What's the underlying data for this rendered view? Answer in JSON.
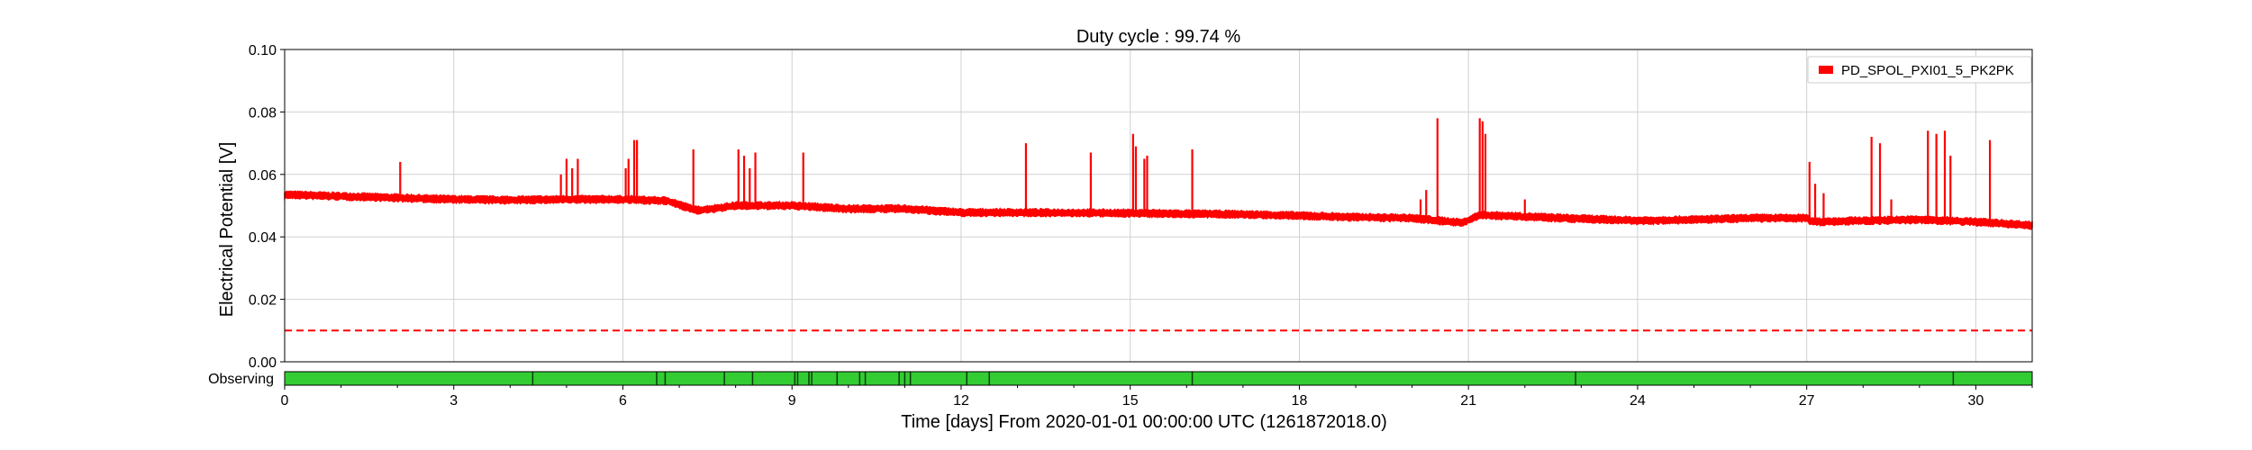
{
  "chart_data": {
    "type": "line",
    "title": "Duty cycle : 99.74 %",
    "xlabel": "Time [days] From 2020-01-01 00:00:00 UTC (1261872018.0)",
    "ylabel": "Electrical Potential [V]",
    "xlim": [
      0,
      31
    ],
    "ylim": [
      0,
      0.1
    ],
    "x_ticks": [
      0,
      3,
      6,
      9,
      12,
      15,
      18,
      21,
      24,
      27,
      30
    ],
    "y_ticks": [
      "0.00",
      "0.02",
      "0.04",
      "0.06",
      "0.08",
      "0.10"
    ],
    "grid": true,
    "legend_position": "top-right",
    "series": [
      {
        "name": "PD_SPOL_PXI01_5_PK2PK",
        "color": "#ff0000",
        "baseline": [
          [
            0.0,
            0.0535
          ],
          [
            1.0,
            0.053
          ],
          [
            2.0,
            0.0525
          ],
          [
            3.0,
            0.052
          ],
          [
            4.0,
            0.0518
          ],
          [
            5.0,
            0.052
          ],
          [
            6.0,
            0.052
          ],
          [
            6.8,
            0.0515
          ],
          [
            7.3,
            0.0485
          ],
          [
            7.6,
            0.049
          ],
          [
            8.0,
            0.05
          ],
          [
            9.0,
            0.05
          ],
          [
            10.0,
            0.049
          ],
          [
            11.0,
            0.049
          ],
          [
            12.0,
            0.0478
          ],
          [
            13.0,
            0.0478
          ],
          [
            14.0,
            0.0477
          ],
          [
            15.0,
            0.0476
          ],
          [
            16.0,
            0.0474
          ],
          [
            17.0,
            0.0472
          ],
          [
            18.0,
            0.0468
          ],
          [
            19.0,
            0.0463
          ],
          [
            20.0,
            0.046
          ],
          [
            20.9,
            0.0445
          ],
          [
            21.2,
            0.047
          ],
          [
            22.0,
            0.0465
          ],
          [
            23.0,
            0.0458
          ],
          [
            24.0,
            0.0452
          ],
          [
            25.0,
            0.0455
          ],
          [
            26.0,
            0.046
          ],
          [
            27.0,
            0.046
          ],
          [
            27.1,
            0.0448
          ],
          [
            28.0,
            0.0452
          ],
          [
            29.0,
            0.0455
          ],
          [
            30.0,
            0.0448
          ],
          [
            31.0,
            0.0437
          ]
        ],
        "spikes": [
          [
            2.05,
            0.064
          ],
          [
            4.9,
            0.06
          ],
          [
            5.0,
            0.065
          ],
          [
            5.1,
            0.062
          ],
          [
            5.2,
            0.065
          ],
          [
            6.05,
            0.062
          ],
          [
            6.1,
            0.065
          ],
          [
            6.2,
            0.071
          ],
          [
            6.25,
            0.071
          ],
          [
            7.25,
            0.068
          ],
          [
            8.05,
            0.068
          ],
          [
            8.15,
            0.066
          ],
          [
            8.25,
            0.062
          ],
          [
            8.35,
            0.067
          ],
          [
            9.2,
            0.067
          ],
          [
            13.15,
            0.07
          ],
          [
            14.3,
            0.067
          ],
          [
            15.05,
            0.073
          ],
          [
            15.1,
            0.069
          ],
          [
            15.25,
            0.065
          ],
          [
            15.3,
            0.066
          ],
          [
            16.1,
            0.068
          ],
          [
            20.15,
            0.052
          ],
          [
            20.25,
            0.055
          ],
          [
            20.45,
            0.078
          ],
          [
            21.2,
            0.078
          ],
          [
            21.25,
            0.077
          ],
          [
            21.3,
            0.073
          ],
          [
            22.0,
            0.052
          ],
          [
            27.05,
            0.064
          ],
          [
            27.15,
            0.057
          ],
          [
            27.3,
            0.054
          ],
          [
            28.15,
            0.072
          ],
          [
            28.3,
            0.07
          ],
          [
            28.5,
            0.052
          ],
          [
            29.15,
            0.074
          ],
          [
            29.3,
            0.073
          ],
          [
            29.45,
            0.074
          ],
          [
            29.55,
            0.066
          ],
          [
            30.25,
            0.071
          ]
        ]
      }
    ],
    "threshold": {
      "y": 0.01,
      "color": "#ff0000",
      "style": "dashed"
    },
    "segment_bar": {
      "label": "Observing",
      "color": "#33cc33",
      "gap_color": "#0a3d0a",
      "gaps": [
        4.4,
        6.6,
        6.75,
        7.8,
        8.3,
        9.05,
        9.1,
        9.3,
        9.35,
        9.8,
        10.2,
        10.3,
        10.9,
        11.0,
        11.1,
        12.1,
        12.5,
        16.1,
        22.9,
        29.6
      ]
    }
  }
}
